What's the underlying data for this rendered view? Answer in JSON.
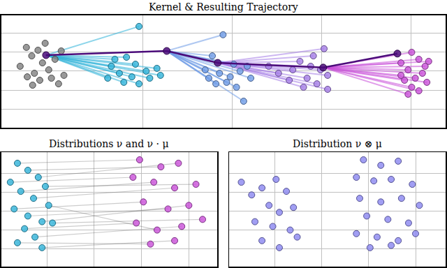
{
  "chart_data": [
    {
      "type": "scatter",
      "title": "Kernel & Resulting Trajectory",
      "xlim": [
        -1.58,
        3.39
      ],
      "ylim": [
        -3.0,
        2.96
      ],
      "xticks": [
        0,
        1,
        2,
        3
      ],
      "yticks": [
        -2,
        -1,
        0,
        1,
        2
      ],
      "grid": true,
      "tick_labels": false,
      "series": [
        {
          "type": "scatter",
          "color": "#808080",
          "x": [
            -1.37,
            -1.3,
            -1.24,
            -1.21,
            -1.17,
            -1.15,
            -1.12,
            -1.05,
            -1.02,
            -0.98,
            -0.94,
            -0.91,
            -0.88,
            -1.23,
            -1.29,
            -1.09
          ],
          "y": [
            0.26,
            1.26,
            0.81,
            -0.11,
            1.11,
            -0.48,
            0.44,
            0.07,
            -0.37,
            0.63,
            -0.67,
            1.07,
            -0.22,
            -0.74,
            -0.3,
            1.48
          ]
        },
        {
          "type": "fan",
          "color": "#2fb3d9",
          "origin": [
            -1.08,
            0.85
          ],
          "x": [
            -0.04,
            -0.18,
            -0.35,
            -0.26,
            -0.12,
            0.04,
            0.16,
            -0.21,
            -0.04,
            0.08,
            -0.31,
            0.2,
            -0.08,
            -0.39
          ],
          "y": [
            2.37,
            0.74,
            0.26,
            -0.11,
            -0.3,
            0.0,
            0.15,
            -0.59,
            -0.67,
            -0.37,
            0.63,
            -0.22,
            0.37,
            -0.37
          ]
        },
        {
          "type": "fan",
          "color": "#6e9be6",
          "origin": [
            0.27,
            1.07
          ],
          "x": [
            0.9,
            0.78,
            0.7,
            0.86,
            0.98,
            1.09,
            1.17,
            0.94,
            1.05,
            1.13,
            0.82,
            1.02,
            0.74,
            1.21
          ],
          "y": [
            1.93,
            0.81,
            0.07,
            -0.11,
            -0.3,
            0.0,
            0.26,
            -0.59,
            -0.85,
            -1.59,
            -0.67,
            0.37,
            -0.37,
            -0.37
          ]
        },
        {
          "type": "fan",
          "color": "#a47ce6",
          "origin": [
            0.84,
            0.44
          ],
          "x": [
            2.03,
            1.91,
            1.76,
            1.88,
            1.99,
            2.07,
            1.68,
            1.52,
            1.84,
            1.95,
            2.07,
            1.41,
            1.8,
            1.64
          ],
          "y": [
            1.19,
            0.81,
            0.52,
            0.26,
            0.07,
            -0.22,
            0.07,
            -0.11,
            -0.37,
            -0.67,
            -0.96,
            0.26,
            -0.85,
            -0.48
          ]
        },
        {
          "type": "fan",
          "color": "#c94fd8",
          "origin": [
            2.02,
            0.19
          ],
          "x": [
            3.01,
            3.09,
            2.89,
            3.16,
            2.97,
            3.13,
            3.05,
            2.93,
            3.18,
            3.01,
            3.09,
            2.89,
            3.2,
            2.97
          ],
          "y": [
            1.0,
            0.63,
            0.44,
            0.26,
            0.07,
            -0.11,
            -0.37,
            -0.48,
            -0.59,
            -0.85,
            -1.04,
            -0.22,
            0.52,
            -1.22
          ]
        },
        {
          "type": "line",
          "color": "#4b0c7a",
          "marker": "circle",
          "x": [
            -1.08,
            0.27,
            0.84,
            2.02,
            2.85
          ],
          "y": [
            0.85,
            1.07,
            0.44,
            0.19,
            0.93
          ]
        }
      ]
    },
    {
      "type": "scatter",
      "title": "Distributions ν and ν · μ",
      "xlim": [
        -0.96,
        3.6
      ],
      "ylim": [
        -2.93,
        3.1
      ],
      "xticks": [
        0,
        1,
        2,
        3
      ],
      "yticks": [
        -2,
        -1,
        0,
        1,
        2
      ],
      "grid": true,
      "tick_labels": false,
      "series": [
        {
          "type": "link",
          "color": "#555555",
          "from": 1,
          "to": 2,
          "pairs": [
            [
              0,
              3
            ],
            [
              1,
              0
            ],
            [
              2,
              1
            ],
            [
              3,
              2
            ],
            [
              4,
              4
            ],
            [
              5,
              5
            ],
            [
              6,
              6
            ],
            [
              7,
              7
            ],
            [
              8,
              8
            ],
            [
              9,
              9
            ],
            [
              10,
              10
            ],
            [
              11,
              11
            ],
            [
              12,
              12
            ],
            [
              13,
              14
            ],
            [
              14,
              15
            ],
            [
              15,
              13
            ]
          ]
        },
        {
          "type": "scatter",
          "color": "#2fb3d9",
          "x": [
            -0.77,
            -0.62,
            -0.4,
            -0.18,
            -0.55,
            -0.28,
            -0.03,
            -0.69,
            -0.4,
            -0.1,
            -0.47,
            0.04,
            -0.25,
            -0.62,
            -0.1,
            0.12
          ],
          "y": [
            1.52,
            2.52,
            2.15,
            1.78,
            1.04,
            0.67,
            1.3,
            0.11,
            -0.26,
            -0.56,
            -0.93,
            0.3,
            -1.37,
            -1.67,
            -1.93,
            -0.63
          ]
        },
        {
          "type": "scatter",
          "color": "#c94fd8",
          "x": [
            1.96,
            2.41,
            2.78,
            1.82,
            2.26,
            2.7,
            3.15,
            2.04,
            2.56,
            3.0,
            1.89,
            2.33,
            2.85,
            3.29,
            2.19,
            2.7
          ],
          "y": [
            2.7,
            2.33,
            2.52,
            1.78,
            1.52,
            1.22,
            1.41,
            0.48,
            0.11,
            0.3,
            -0.63,
            -1.0,
            -0.81,
            -0.44,
            -1.74,
            -1.56
          ]
        }
      ]
    },
    {
      "type": "scatter",
      "title": "Distribution ν ⊗ μ",
      "xlim": [
        -0.97,
        3.64
      ],
      "ylim": [
        -2.93,
        3.1
      ],
      "xticks": [
        0,
        1,
        2,
        3
      ],
      "yticks": [
        -2,
        -1,
        0,
        1,
        2
      ],
      "grid": true,
      "tick_labels": false,
      "series": [
        {
          "type": "scatter",
          "color": "#8a86f0",
          "x": [
            -0.71,
            -0.49,
            -0.27,
            0.03,
            0.25,
            -0.12,
            0.1,
            0.4,
            -0.42,
            -0.04,
            0.33,
            -0.27,
            0.1,
            0.48,
            1.89,
            2.26,
            2.63,
            1.74,
            2.11,
            2.48,
            2.93,
            1.81,
            2.26,
            2.7,
            3.08,
            1.96,
            2.41,
            2.85,
            1.74,
            2.18,
            2.63,
            3.0,
            2.03,
            2.48
          ],
          "y": [
            1.52,
            0.85,
            1.22,
            1.67,
            1.04,
            0.3,
            -0.07,
            0.19,
            -0.56,
            -0.81,
            -1.0,
            -1.56,
            -1.93,
            -1.37,
            2.7,
            2.41,
            2.63,
            1.78,
            1.59,
            1.67,
            1.41,
            0.67,
            0.48,
            0.67,
            0.3,
            -0.26,
            -0.44,
            -0.63,
            -1.19,
            -1.37,
            -1.56,
            -1.19,
            -1.93,
            -1.81
          ]
        }
      ]
    }
  ]
}
